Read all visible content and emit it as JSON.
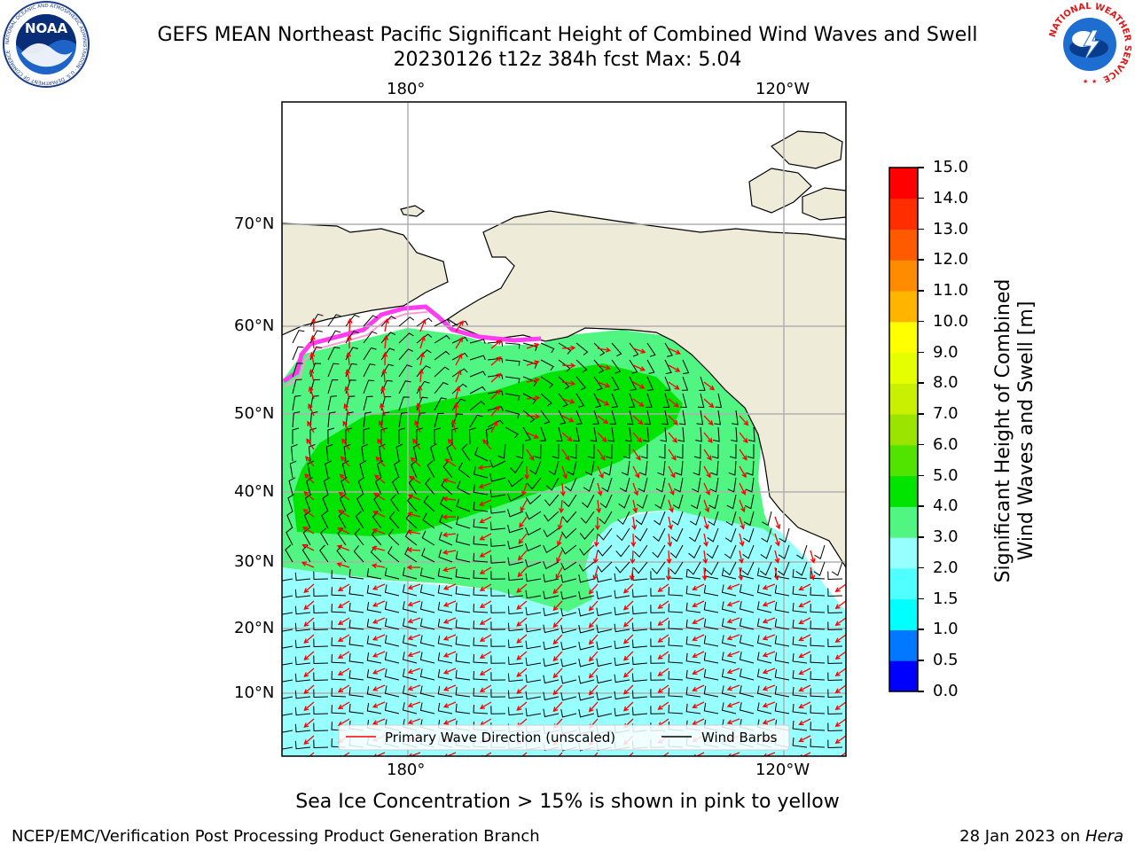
{
  "header": {
    "title_line1": "GEFS MEAN Northeast Pacific Significant Height of Combined Wind Waves and Swell",
    "title_line2": "20230126 t12z 384h fcst   Max: 5.04"
  },
  "logos": {
    "noaa_text": "NOAA",
    "noaa_ring": "NATIONAL OCEANIC AND ATMOSPHERIC ADMINISTRATION · U.S. DEPARTMENT OF COMMERCE",
    "nws_ring": "NATIONAL WEATHER SERVICE"
  },
  "map": {
    "lon_labels_top": [
      "180°",
      "120°W"
    ],
    "lon_labels_bottom": [
      "180°",
      "120°W"
    ],
    "lat_labels": [
      "70°N",
      "60°N",
      "50°N",
      "40°N",
      "30°N",
      "20°N",
      "10°N"
    ],
    "colors": {
      "land": "#efebd9",
      "ocean_low": "#98ffff",
      "ocean_mid": "#50f582",
      "ocean_high": "#00e400",
      "ice": "#ff3cf0",
      "wave_arrow": "#ff0000",
      "wind_barb": "#000000",
      "grid": "#b0b0b0"
    }
  },
  "legend": {
    "wave_label": "Primary Wave Direction (unscaled)",
    "wind_label": "Wind Barbs"
  },
  "colorbar": {
    "label_line1": "Significant Height of Combined",
    "label_line2": "Wind Waves and Swell [m]",
    "ticks": [
      "0.0",
      "0.5",
      "1.0",
      "1.5",
      "2.0",
      "3.0",
      "4.0",
      "5.0",
      "6.0",
      "7.0",
      "8.0",
      "9.0",
      "10.0",
      "11.0",
      "12.0",
      "13.0",
      "14.0",
      "15.0"
    ],
    "colors": [
      "#0000ff",
      "#0078ff",
      "#00ffff",
      "#50ffff",
      "#98ffff",
      "#50f582",
      "#00e400",
      "#50e400",
      "#9ae400",
      "#c8f000",
      "#e6ff00",
      "#ffff00",
      "#ffb400",
      "#ff8c00",
      "#ff5a00",
      "#ff2d00",
      "#ff0000"
    ]
  },
  "footer": {
    "note": "Sea Ice Concentration > 15% is shown in pink to yellow",
    "credit": "NCEP/EMC/Verification Post Processing Product Generation Branch",
    "date": "28 Jan 2023 on ",
    "machine": "Hera"
  }
}
